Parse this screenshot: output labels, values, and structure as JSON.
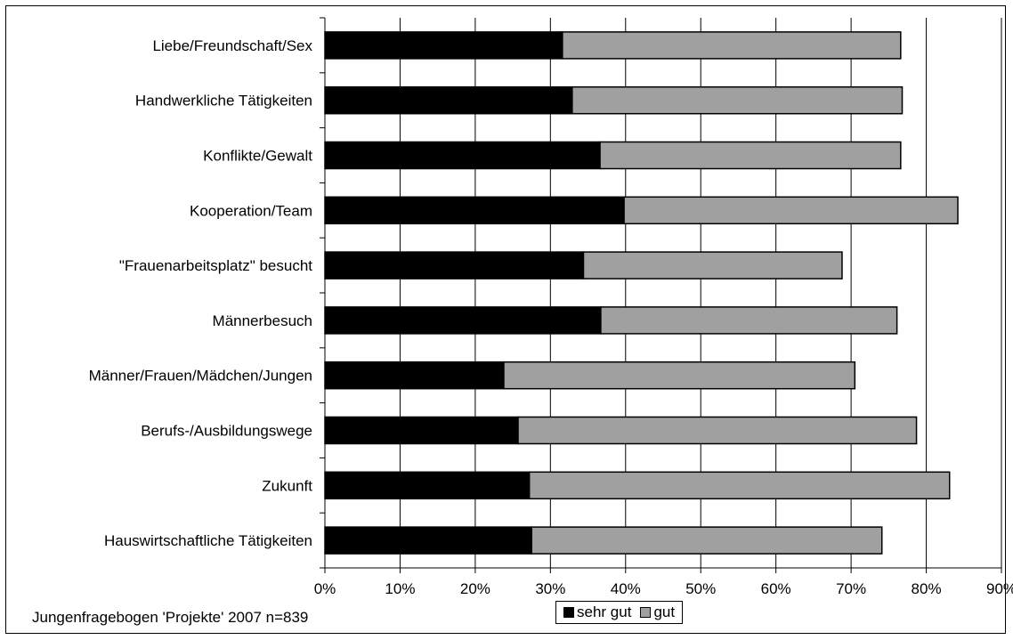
{
  "chart_data": {
    "type": "bar",
    "orientation": "horizontal",
    "stacked": true,
    "categories": [
      "Liebe/Freundschaft/Sex",
      "Handwerkliche Tätigkeiten",
      "Konflikte/Gewalt",
      "Kooperation/Team",
      "\"Frauenarbeitsplatz\" besucht",
      "Männerbesuch",
      "Männer/Frauen/Mädchen/Jungen",
      "Berufs-/Ausbildungswege",
      "Zukunft",
      "Hauswirtschaftliche Tätigkeiten"
    ],
    "series": [
      {
        "name": "sehr gut",
        "color": "#000000",
        "values": [
          31.6,
          32.9,
          36.6,
          39.8,
          34.4,
          36.7,
          23.8,
          25.7,
          27.2,
          27.5
        ]
      },
      {
        "name": "gut",
        "color": "#a0a0a0",
        "values": [
          45.0,
          43.9,
          40.0,
          44.4,
          34.4,
          39.4,
          46.7,
          53.0,
          55.9,
          46.6
        ]
      }
    ],
    "xlim": [
      0,
      90
    ],
    "xticks": [
      "0%",
      "10%",
      "20%",
      "30%",
      "40%",
      "50%",
      "60%",
      "70%",
      "80%",
      "90%"
    ],
    "grid": true,
    "legend_position": "bottom"
  },
  "source_note": "Jungenfragebogen 'Projekte' 2007 n=839"
}
